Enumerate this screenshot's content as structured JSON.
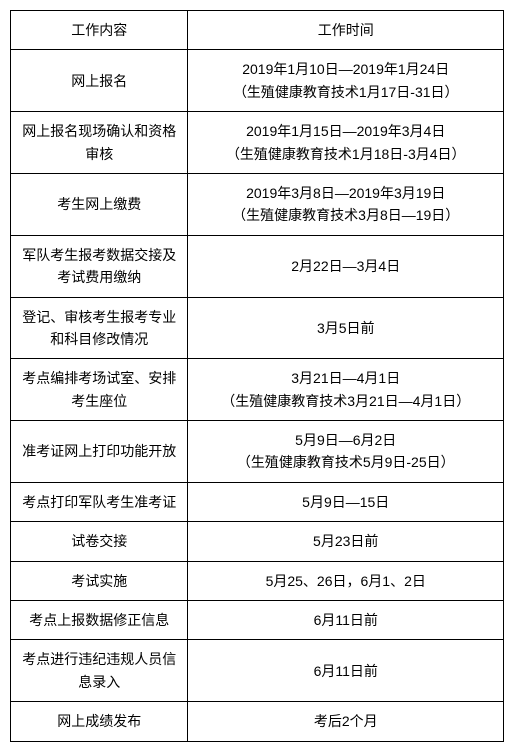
{
  "table": {
    "type": "table",
    "border_color": "#000000",
    "background_color": "#ffffff",
    "text_color": "#000000",
    "font_size": 14,
    "columns": [
      {
        "key": "content",
        "label": "工作内容",
        "width_pct": 36
      },
      {
        "key": "time",
        "label": "工作时间",
        "width_pct": 64
      }
    ],
    "rows": [
      {
        "content": "网上报名",
        "time": "2019年1月10日—2019年1月24日\n（生殖健康教育技术1月17日-31日）"
      },
      {
        "content": "网上报名现场确认和资格审核",
        "time": "2019年1月15日—2019年3月4日\n（生殖健康教育技术1月18日-3月4日）"
      },
      {
        "content": "考生网上缴费",
        "time": "2019年3月8日—2019年3月19日\n（生殖健康教育技术3月8日—19日）"
      },
      {
        "content": "军队考生报考数据交接及考试费用缴纳",
        "time": "2月22日—3月4日"
      },
      {
        "content": "登记、审核考生报考专业和科目修改情况",
        "time": "3月5日前"
      },
      {
        "content": "考点编排考场试室、安排考生座位",
        "time": "3月21日—4月1日\n（生殖健康教育技术3月21日—4月1日）"
      },
      {
        "content": "准考证网上打印功能开放",
        "time": "5月9日—6月2日\n（生殖健康教育技术5月9日-25日）"
      },
      {
        "content": "考点打印军队考生准考证",
        "time": "5月9日—15日"
      },
      {
        "content": "试卷交接",
        "time": "5月23日前"
      },
      {
        "content": "考试实施",
        "time": "5月25、26日，6月1、2日"
      },
      {
        "content": "考点上报数据修正信息",
        "time": "6月11日前"
      },
      {
        "content": "考点进行违纪违规人员信息录入",
        "time": "6月11日前"
      },
      {
        "content": "网上成绩发布",
        "time": "考后2个月"
      }
    ]
  }
}
